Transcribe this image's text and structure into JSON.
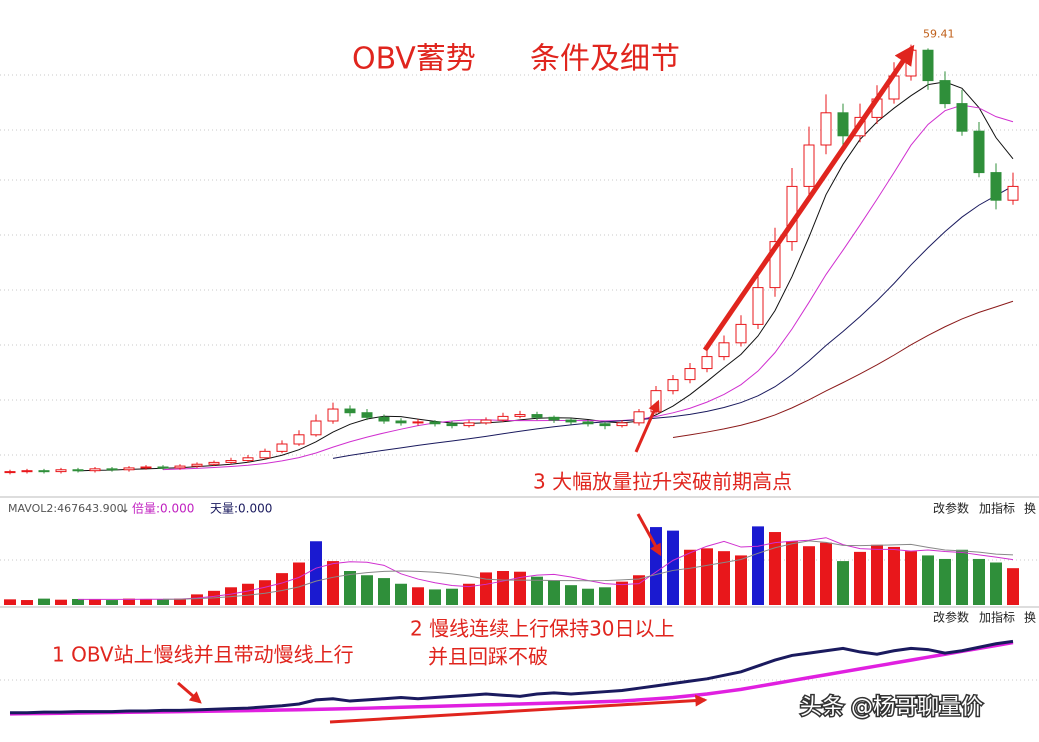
{
  "chart_data": [
    {
      "type": "candlestick",
      "title": "OBV蓄势",
      "subtitle": "条件及细节",
      "open": [
        12.9,
        13.0,
        13.1,
        13.0,
        13.2,
        13.1,
        13.3,
        13.2,
        13.4,
        13.5,
        13.4,
        13.6,
        13.8,
        14.0,
        14.2,
        14.5,
        15.2,
        16.0,
        17.0,
        18.5,
        19.8,
        19.4,
        18.9,
        18.5,
        18.3,
        18.4,
        18.2,
        18.0,
        18.3,
        18.6,
        19.0,
        19.2,
        18.9,
        18.6,
        18.4,
        18.2,
        18.0,
        18.3,
        19.5,
        21.8,
        23.0,
        24.2,
        25.5,
        27.0,
        29.0,
        33.0,
        38.0,
        44.0,
        48.5,
        52.0,
        49.5,
        51.5,
        53.5,
        56.0,
        58.8,
        55.5,
        53.0,
        50.0,
        45.5,
        42.5
      ],
      "high": [
        13.2,
        13.3,
        13.3,
        13.4,
        13.4,
        13.5,
        13.5,
        13.6,
        13.7,
        13.7,
        13.8,
        14.0,
        14.2,
        14.5,
        14.8,
        15.5,
        16.4,
        17.5,
        19.2,
        20.5,
        20.2,
        19.8,
        19.2,
        18.8,
        18.7,
        18.6,
        18.5,
        18.6,
        18.9,
        19.4,
        19.6,
        19.5,
        19.1,
        18.8,
        18.6,
        18.4,
        18.6,
        19.8,
        22.3,
        23.5,
        24.8,
        26.2,
        27.8,
        30.0,
        34.5,
        39.5,
        46.0,
        50.5,
        54.0,
        53.0,
        53.0,
        55.0,
        57.5,
        59.41,
        59.0,
        56.5,
        54.5,
        51.0,
        46.5,
        45.5
      ],
      "low": [
        12.7,
        12.8,
        12.8,
        12.8,
        12.9,
        12.9,
        13.0,
        13.0,
        13.2,
        13.2,
        13.2,
        13.4,
        13.6,
        13.8,
        14.0,
        14.3,
        15.0,
        15.8,
        16.8,
        18.2,
        19.0,
        18.6,
        18.2,
        18.0,
        18.0,
        17.9,
        17.7,
        17.8,
        18.1,
        18.4,
        18.8,
        18.6,
        18.3,
        18.1,
        17.9,
        17.6,
        17.8,
        18.0,
        19.2,
        21.4,
        22.6,
        23.8,
        25.1,
        26.6,
        28.5,
        32.0,
        37.0,
        43.0,
        47.5,
        48.5,
        48.8,
        50.8,
        53.0,
        55.5,
        54.5,
        52.5,
        49.5,
        45.0,
        41.5,
        42.0
      ],
      "close": [
        13.0,
        13.1,
        13.0,
        13.2,
        13.1,
        13.3,
        13.2,
        13.4,
        13.5,
        13.4,
        13.6,
        13.8,
        14.0,
        14.2,
        14.5,
        15.2,
        16.0,
        17.0,
        18.5,
        19.8,
        19.4,
        18.9,
        18.5,
        18.3,
        18.4,
        18.2,
        18.0,
        18.3,
        18.6,
        19.0,
        19.2,
        18.9,
        18.6,
        18.4,
        18.2,
        18.0,
        18.3,
        19.5,
        21.8,
        23.0,
        24.2,
        25.5,
        27.0,
        29.0,
        33.0,
        38.0,
        44.0,
        48.5,
        52.0,
        49.5,
        51.5,
        53.5,
        56.0,
        58.8,
        55.5,
        53.0,
        50.0,
        45.5,
        42.5,
        44.0
      ],
      "up_color": "#e8171b",
      "down_color": "#2f8f3a",
      "ylim": [
        11,
        61
      ]
    },
    {
      "type": "bar",
      "legend": [
        "MAVOL2:467643.900",
        "↓",
        "倍量:0.000",
        "天量:0.000"
      ],
      "values": [
        80000,
        70000,
        90000,
        75000,
        85000,
        80000,
        70000,
        90000,
        85000,
        80000,
        90000,
        150000,
        200000,
        250000,
        300000,
        350000,
        450000,
        600000,
        900000,
        620000,
        480000,
        420000,
        380000,
        300000,
        250000,
        220000,
        230000,
        300000,
        460000,
        480000,
        470000,
        400000,
        350000,
        280000,
        230000,
        250000,
        330000,
        420000,
        1100000,
        1050000,
        780000,
        800000,
        760000,
        700000,
        1110000,
        1030000,
        900000,
        830000,
        880000,
        620000,
        750000,
        850000,
        820000,
        760000,
        700000,
        650000,
        780000,
        650000,
        600000,
        520000
      ],
      "colors": [
        "#e8171b",
        "#e8171b",
        "#2f8f3a",
        "#e8171b",
        "#2f8f3a",
        "#e8171b",
        "#2f8f3a",
        "#e8171b",
        "#e8171b",
        "#2f8f3a",
        "#e8171b",
        "#e8171b",
        "#e8171b",
        "#e8171b",
        "#e8171b",
        "#e8171b",
        "#e8171b",
        "#e8171b",
        "#1a1ad0",
        "#e8171b",
        "#2f8f3a",
        "#2f8f3a",
        "#2f8f3a",
        "#2f8f3a",
        "#e8171b",
        "#2f8f3a",
        "#2f8f3a",
        "#e8171b",
        "#e8171b",
        "#e8171b",
        "#e8171b",
        "#2f8f3a",
        "#2f8f3a",
        "#2f8f3a",
        "#2f8f3a",
        "#2f8f3a",
        "#e8171b",
        "#e8171b",
        "#1a1ad0",
        "#1a1ad0",
        "#e8171b",
        "#e8171b",
        "#e8171b",
        "#e8171b",
        "#1a1ad0",
        "#e8171b",
        "#e8171b",
        "#e8171b",
        "#e8171b",
        "#2f8f3a",
        "#e8171b",
        "#e8171b",
        "#e8171b",
        "#e8171b",
        "#2f8f3a",
        "#2f8f3a",
        "#2f8f3a",
        "#2f8f3a",
        "#2f8f3a",
        "#e8171b"
      ],
      "ylim": [
        0,
        1200000
      ]
    },
    {
      "type": "line",
      "series": [
        {
          "color": "#1a1a5e",
          "values": [
            25,
            25,
            25.5,
            25.5,
            26,
            26,
            26,
            26.5,
            26.5,
            27,
            27,
            27.5,
            28,
            28.5,
            29,
            30,
            31,
            32.5,
            36,
            37,
            35,
            36,
            37,
            38,
            37,
            38,
            39,
            40,
            41,
            40,
            39,
            41,
            42,
            41,
            42,
            43,
            44,
            46,
            48,
            50,
            52,
            54,
            57,
            60,
            65,
            70,
            74,
            76,
            78,
            80,
            77,
            75,
            78,
            80,
            79,
            76,
            78,
            81,
            84,
            86
          ]
        },
        {
          "color": "#e020e0",
          "values": [
            24,
            24.2,
            24.4,
            24.6,
            24.8,
            25,
            25.2,
            25.4,
            25.6,
            25.8,
            26,
            26.2,
            26.4,
            26.6,
            26.8,
            27,
            27.3,
            27.6,
            27.9,
            28.2,
            28.5,
            28.9,
            29.3,
            29.7,
            30.1,
            30.5,
            30.9,
            31.3,
            31.7,
            32.1,
            32.5,
            32.9,
            33.3,
            33.7,
            34.1,
            34.5,
            35,
            36,
            37,
            38,
            39.5,
            41,
            43,
            45,
            47.5,
            50,
            52.5,
            55,
            57.5,
            60,
            62.5,
            65,
            67.5,
            70,
            72.5,
            75,
            77.5,
            80,
            82.5,
            85
          ]
        }
      ],
      "ylim": [
        0,
        100
      ]
    }
  ],
  "annotations": [
    "3 大幅放量拉升突破前期高点",
    "2 慢线连续上行保持30日以上",
    "并且回踩不破",
    "1 OBV站上慢线并且带动慢线上行"
  ],
  "toolbar": [
    "改参数",
    "加指标",
    "换"
  ],
  "watermark": "头条 @杨哥聊量价"
}
